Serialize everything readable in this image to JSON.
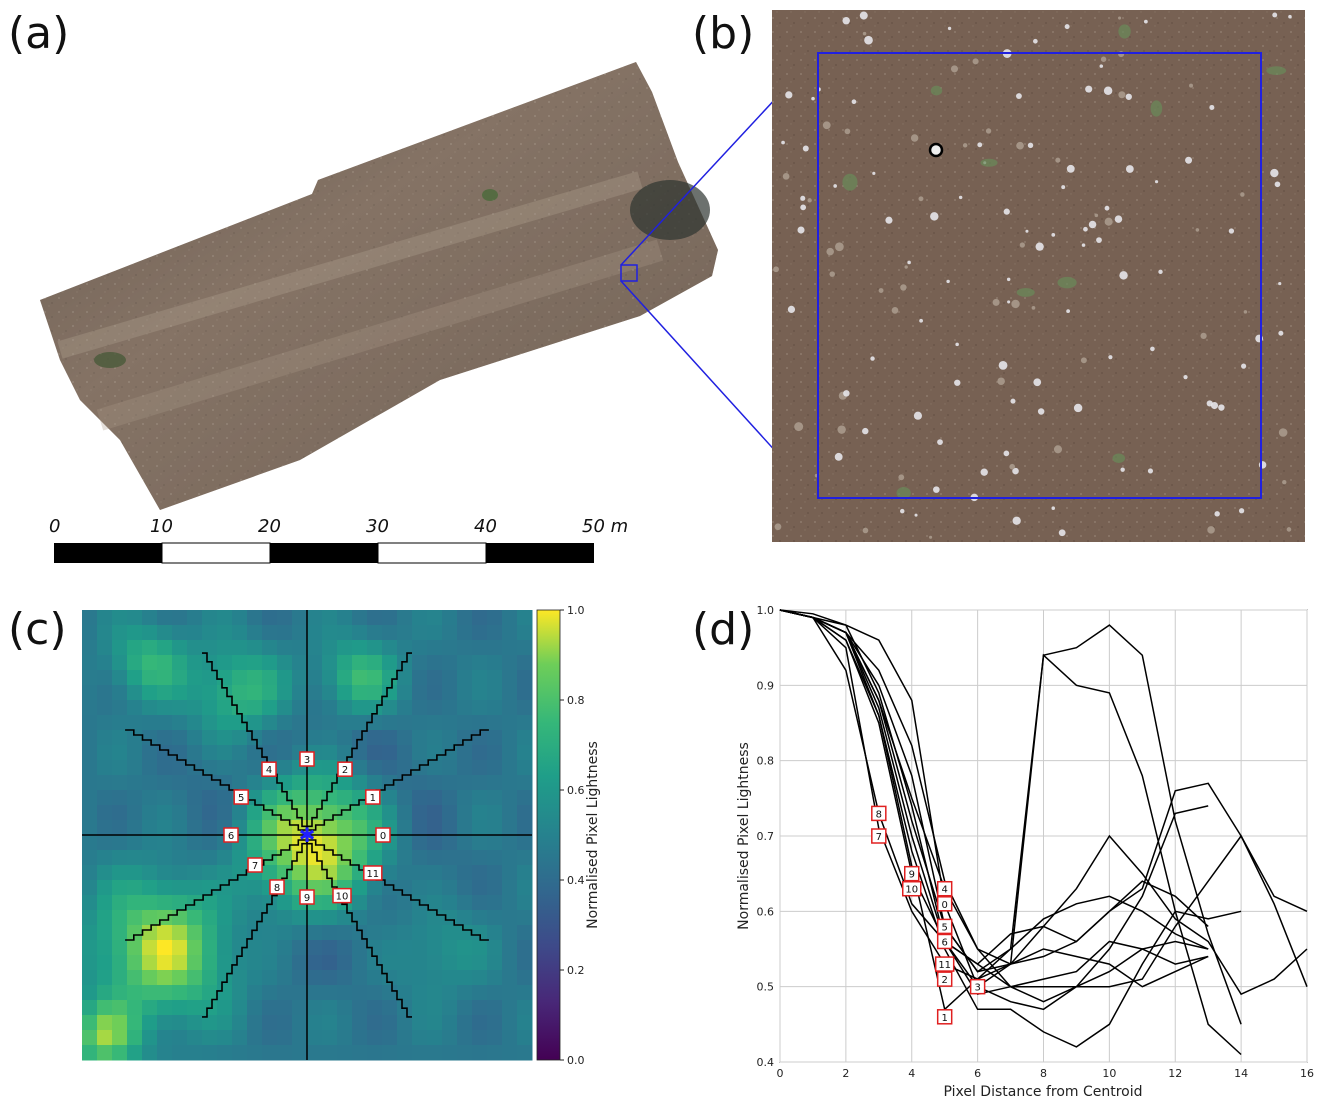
{
  "panels": {
    "a": {
      "letter": "(a)"
    },
    "b": {
      "letter": "(b)"
    },
    "c": {
      "letter": "(c)"
    },
    "d": {
      "letter": "(d)"
    }
  },
  "scale_bar": {
    "ticks": [
      "0",
      "10",
      "20",
      "30",
      "40",
      "50 m"
    ]
  },
  "colors": {
    "inset_box": "#2020e0",
    "label_box": "#e02020",
    "line": "#000000",
    "centroid": "#2020ff"
  },
  "chart_data": [
    {
      "type": "heatmap",
      "title": "",
      "colorbar_label": "Normalised Pixel Lightness",
      "colorbar_ticks": [
        "0.0",
        "0.2",
        "0.4",
        "0.6",
        "0.8",
        "1.0"
      ],
      "colorbar_range": [
        0.0,
        1.0
      ],
      "colormap": "viridis",
      "ray_labels": [
        "0",
        "1",
        "2",
        "3",
        "4",
        "5",
        "6",
        "7",
        "8",
        "9",
        "10",
        "11"
      ]
    },
    {
      "type": "line",
      "title": "",
      "xlabel": "Pixel Distance from Centroid",
      "ylabel": "Normalised Pixel Lightness",
      "xlim": [
        0,
        16
      ],
      "ylim": [
        0.4,
        1.0
      ],
      "xticks": [
        "0",
        "2",
        "4",
        "6",
        "8",
        "10",
        "12",
        "14",
        "16"
      ],
      "yticks": [
        "0.4",
        "0.5",
        "0.6",
        "0.7",
        "0.8",
        "0.9",
        "1.0"
      ],
      "grid": true,
      "series": [
        {
          "values": [
            [
              0,
              1.0
            ],
            [
              1,
              0.99
            ],
            [
              2,
              0.97
            ],
            [
              3,
              0.88
            ],
            [
              4,
              0.75
            ],
            [
              5,
              0.63
            ],
            [
              6,
              0.55
            ],
            [
              7,
              0.5
            ],
            [
              8,
              0.48
            ],
            [
              9,
              0.5
            ],
            [
              10,
              0.52
            ],
            [
              11,
              0.55
            ],
            [
              12,
              0.56
            ],
            [
              13,
              0.55
            ]
          ]
        },
        {
          "values": [
            [
              0,
              1.0
            ],
            [
              1,
              0.99
            ],
            [
              2,
              0.96
            ],
            [
              3,
              0.86
            ],
            [
              4,
              0.66
            ],
            [
              5,
              0.47
            ],
            [
              6,
              0.51
            ],
            [
              7,
              0.53
            ],
            [
              8,
              0.55
            ],
            [
              9,
              0.54
            ],
            [
              10,
              0.53
            ],
            [
              11,
              0.5
            ],
            [
              12,
              0.52
            ],
            [
              13,
              0.54
            ]
          ]
        },
        {
          "values": [
            [
              0,
              1.0
            ],
            [
              1,
              0.99
            ],
            [
              2,
              0.98
            ],
            [
              3,
              0.89
            ],
            [
              4,
              0.74
            ],
            [
              5,
              0.56
            ],
            [
              6,
              0.49
            ],
            [
              7,
              0.5
            ],
            [
              8,
              0.51
            ],
            [
              9,
              0.52
            ],
            [
              10,
              0.56
            ],
            [
              11,
              0.55
            ],
            [
              12,
              0.53
            ],
            [
              13,
              0.54
            ]
          ]
        },
        {
          "values": [
            [
              0,
              1.0
            ],
            [
              1,
              0.995
            ],
            [
              2,
              0.98
            ],
            [
              3,
              0.96
            ],
            [
              4,
              0.88
            ],
            [
              5,
              0.61
            ],
            [
              6,
              0.5
            ],
            [
              7,
              0.48
            ],
            [
              8,
              0.47
            ],
            [
              9,
              0.5
            ],
            [
              10,
              0.55
            ],
            [
              11,
              0.62
            ],
            [
              12,
              0.73
            ],
            [
              13,
              0.74
            ]
          ]
        },
        {
          "values": [
            [
              0,
              1.0
            ],
            [
              1,
              0.99
            ],
            [
              2,
              0.97
            ],
            [
              3,
              0.92
            ],
            [
              4,
              0.82
            ],
            [
              5,
              0.64
            ],
            [
              6,
              0.55
            ],
            [
              7,
              0.53
            ],
            [
              8,
              0.54
            ],
            [
              9,
              0.56
            ],
            [
              10,
              0.6
            ],
            [
              11,
              0.64
            ],
            [
              12,
              0.62
            ],
            [
              13,
              0.58
            ]
          ]
        },
        {
          "values": [
            [
              0,
              1.0
            ],
            [
              1,
              0.99
            ],
            [
              2,
              0.97
            ],
            [
              3,
              0.9
            ],
            [
              4,
              0.78
            ],
            [
              5,
              0.58
            ],
            [
              6,
              0.52
            ],
            [
              7,
              0.55
            ],
            [
              8,
              0.94
            ],
            [
              9,
              0.95
            ],
            [
              10,
              0.98
            ],
            [
              11,
              0.94
            ],
            [
              12,
              0.72
            ],
            [
              13,
              0.57
            ],
            [
              14,
              0.45
            ]
          ]
        },
        {
          "values": [
            [
              0,
              1.0
            ],
            [
              1,
              0.99
            ],
            [
              2,
              0.95
            ],
            [
              3,
              0.71
            ],
            [
              4,
              0.6
            ],
            [
              5,
              0.53
            ],
            [
              6,
              0.51
            ],
            [
              7,
              0.55
            ],
            [
              8,
              0.59
            ],
            [
              9,
              0.61
            ],
            [
              10,
              0.62
            ],
            [
              11,
              0.6
            ],
            [
              12,
              0.57
            ],
            [
              13,
              0.55
            ]
          ]
        },
        {
          "values": [
            [
              0,
              1.0
            ],
            [
              1,
              0.99
            ],
            [
              2,
              0.92
            ],
            [
              3,
              0.73
            ],
            [
              4,
              0.61
            ],
            [
              5,
              0.56
            ],
            [
              6,
              0.53
            ],
            [
              7,
              0.57
            ],
            [
              8,
              0.58
            ],
            [
              9,
              0.56
            ],
            [
              10,
              0.6
            ],
            [
              11,
              0.63
            ],
            [
              12,
              0.76
            ],
            [
              13,
              0.77
            ],
            [
              14,
              0.7
            ],
            [
              15,
              0.62
            ],
            [
              16,
              0.6
            ]
          ]
        },
        {
          "values": [
            [
              0,
              1.0
            ],
            [
              1,
              0.99
            ],
            [
              2,
              0.96
            ],
            [
              3,
              0.85
            ],
            [
              4,
              0.65
            ],
            [
              5,
              0.56
            ],
            [
              6,
              0.5
            ],
            [
              7,
              0.53
            ],
            [
              8,
              0.94
            ],
            [
              9,
              0.9
            ],
            [
              10,
              0.89
            ],
            [
              11,
              0.78
            ],
            [
              12,
              0.6
            ],
            [
              13,
              0.45
            ],
            [
              14,
              0.41
            ]
          ]
        },
        {
          "values": [
            [
              0,
              1.0
            ],
            [
              1,
              0.99
            ],
            [
              2,
              0.97
            ],
            [
              3,
              0.86
            ],
            [
              4,
              0.68
            ],
            [
              5,
              0.55
            ],
            [
              6,
              0.47
            ],
            [
              7,
              0.47
            ],
            [
              8,
              0.44
            ],
            [
              9,
              0.42
            ],
            [
              10,
              0.45
            ],
            [
              11,
              0.53
            ],
            [
              12,
              0.6
            ],
            [
              13,
              0.59
            ],
            [
              14,
              0.6
            ]
          ]
        },
        {
          "values": [
            [
              0,
              1.0
            ],
            [
              1,
              0.99
            ],
            [
              2,
              0.97
            ],
            [
              3,
              0.88
            ],
            [
              4,
              0.72
            ],
            [
              5,
              0.58
            ],
            [
              6,
              0.52
            ],
            [
              7,
              0.53
            ],
            [
              8,
              0.58
            ],
            [
              9,
              0.63
            ],
            [
              10,
              0.7
            ],
            [
              11,
              0.65
            ],
            [
              12,
              0.59
            ],
            [
              13,
              0.56
            ],
            [
              14,
              0.49
            ],
            [
              15,
              0.51
            ],
            [
              16,
              0.55
            ]
          ]
        },
        {
          "values": [
            [
              0,
              1.0
            ],
            [
              1,
              0.99
            ],
            [
              2,
              0.97
            ],
            [
              3,
              0.87
            ],
            [
              4,
              0.7
            ],
            [
              5,
              0.56
            ],
            [
              6,
              0.53
            ],
            [
              7,
              0.5
            ],
            [
              8,
              0.5
            ],
            [
              9,
              0.5
            ],
            [
              10,
              0.5
            ],
            [
              11,
              0.51
            ],
            [
              12,
              0.58
            ],
            [
              13,
              0.64
            ],
            [
              14,
              0.7
            ],
            [
              15,
              0.61
            ],
            [
              16,
              0.5
            ]
          ]
        }
      ],
      "annotations": [
        {
          "label": "8",
          "x": 3,
          "y": 0.73
        },
        {
          "label": "7",
          "x": 3,
          "y": 0.7
        },
        {
          "label": "9",
          "x": 4,
          "y": 0.65
        },
        {
          "label": "10",
          "x": 4,
          "y": 0.63
        },
        {
          "label": "4",
          "x": 5,
          "y": 0.63
        },
        {
          "label": "0",
          "x": 5,
          "y": 0.61
        },
        {
          "label": "5",
          "x": 5,
          "y": 0.58
        },
        {
          "label": "6",
          "x": 5,
          "y": 0.56
        },
        {
          "label": "11",
          "x": 5,
          "y": 0.53
        },
        {
          "label": "2",
          "x": 5,
          "y": 0.51
        },
        {
          "label": "3",
          "x": 6,
          "y": 0.5
        },
        {
          "label": "1",
          "x": 5,
          "y": 0.46
        }
      ]
    }
  ]
}
